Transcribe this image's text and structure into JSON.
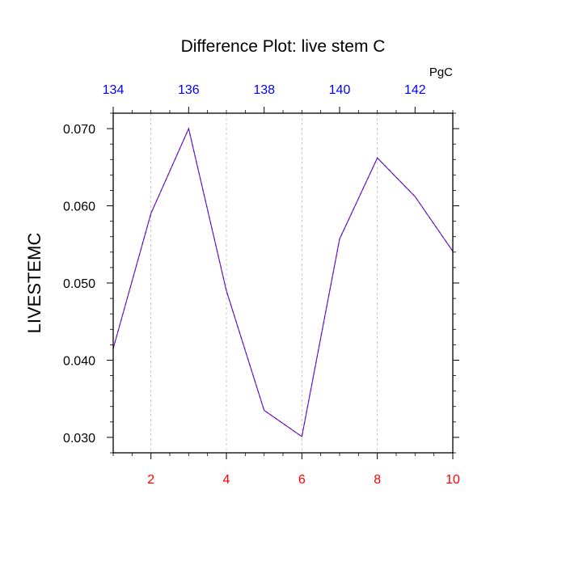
{
  "chart_data": {
    "type": "line",
    "title": "Difference Plot: live stem C",
    "ylabel": "LIVESTEMC",
    "units": "PgC",
    "x": [
      1,
      2,
      3,
      4,
      5,
      6,
      7,
      8,
      9,
      10
    ],
    "series": [
      {
        "values": [
          0.0415,
          0.059,
          0.07,
          0.049,
          0.0335,
          0.0301,
          0.0557,
          0.0662,
          0.0612,
          0.0541
        ],
        "color": "#8a00a8",
        "line_style": "dashed"
      }
    ],
    "xlim": [
      1,
      10
    ],
    "ylim": [
      0.028,
      0.072
    ],
    "x_ticks": [
      2,
      4,
      6,
      8,
      10
    ],
    "x_tick_labels": [
      "2",
      "4",
      "6",
      "8",
      "10"
    ],
    "x_tick_color": "#ff0000",
    "y_ticks": [
      0.03,
      0.04,
      0.05,
      0.06,
      0.07
    ],
    "y_tick_labels": [
      "0.030",
      "0.040",
      "0.050",
      "0.060",
      "0.070"
    ],
    "top_axis": {
      "ticks_at_x": [
        1,
        3,
        5,
        7,
        9
      ],
      "tick_labels": [
        "134",
        "136",
        "138",
        "140",
        "142"
      ],
      "color": "#0000ff"
    },
    "grid": {
      "vertical": true,
      "horizontal": false,
      "color": "#bbbbbb",
      "style": "dashed"
    }
  }
}
